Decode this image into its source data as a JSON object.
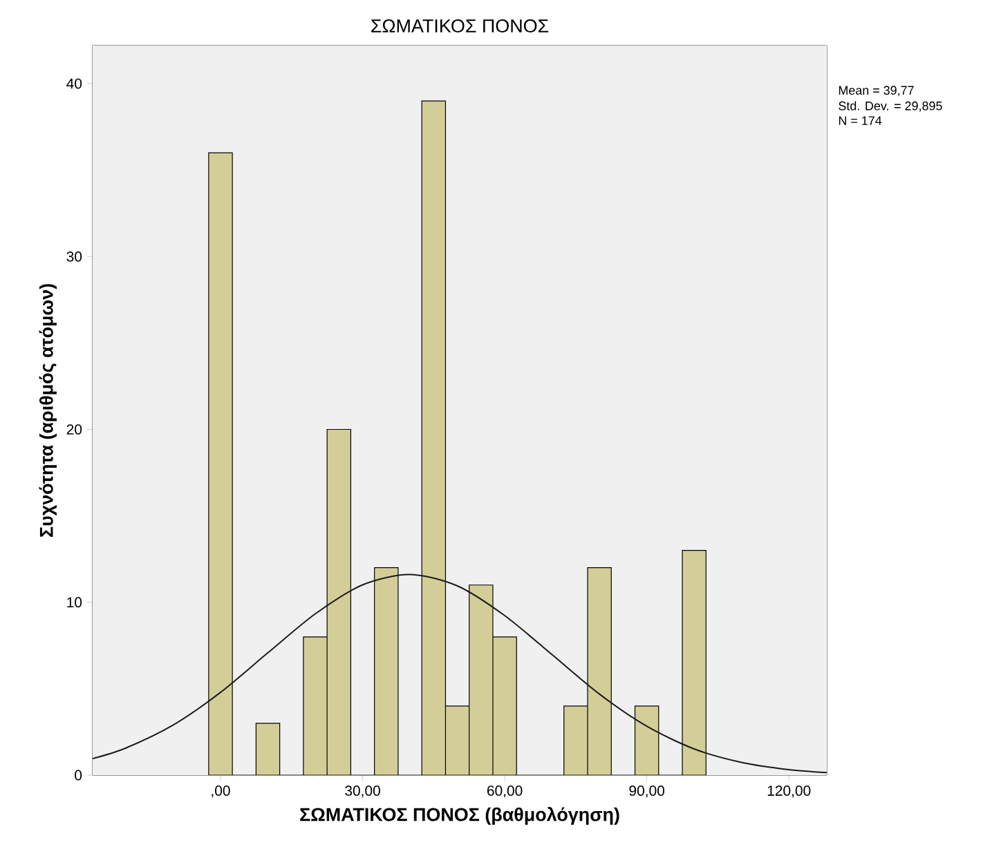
{
  "chart_data": {
    "type": "histogram",
    "title": "ΣΩΜΑΤΙΚΟΣ ΠΟΝΟΣ",
    "xlabel": "ΣΩΜΑΤΙΚΟΣ ΠΟΝΟΣ (βαθμολόγηση)",
    "ylabel": "Συχνότητα (αριθμός ατόμων)",
    "bins": [
      -2.5,
      2.5,
      7.5,
      12.5,
      17.5,
      22.5,
      27.5,
      32.5,
      37.5,
      42.5,
      47.5,
      52.5,
      57.5,
      62.5,
      67.5,
      72.5,
      77.5,
      82.5,
      87.5,
      92.5,
      97.5,
      102.5
    ],
    "values": [
      36,
      0,
      3,
      0,
      8,
      20,
      0,
      12,
      0,
      39,
      4,
      11,
      8,
      0,
      0,
      4,
      12,
      0,
      4,
      0,
      13
    ],
    "color": "#d3ce97",
    "series": [
      {
        "type": "line",
        "color": "#1a1a1a",
        "x": [
          -27,
          -20,
          -10,
          0,
          10,
          20,
          30,
          40,
          50,
          60,
          70,
          80,
          90,
          100,
          110,
          120,
          128
        ],
        "values": [
          0.96,
          1.57,
          2.9,
          4.79,
          7.08,
          9.33,
          11.01,
          11.61,
          10.95,
          9.23,
          6.97,
          4.69,
          2.83,
          1.52,
          0.74,
          0.32,
          0.15
        ]
      }
    ],
    "xlim": [
      -27,
      128
    ],
    "ylim": [
      0,
      42.2
    ],
    "xticks": [
      {
        "value": 0,
        "label": ",00"
      },
      {
        "value": 30,
        "label": "30,00"
      },
      {
        "value": 60,
        "label": "60,00"
      },
      {
        "value": 90,
        "label": "90,00"
      },
      {
        "value": 120,
        "label": "120,00"
      }
    ],
    "yticks": [
      0,
      10,
      20,
      30,
      40
    ],
    "annotations": [
      "Mean = 39,77",
      "Std. Dev. = 29,895",
      "N = 174"
    ]
  }
}
